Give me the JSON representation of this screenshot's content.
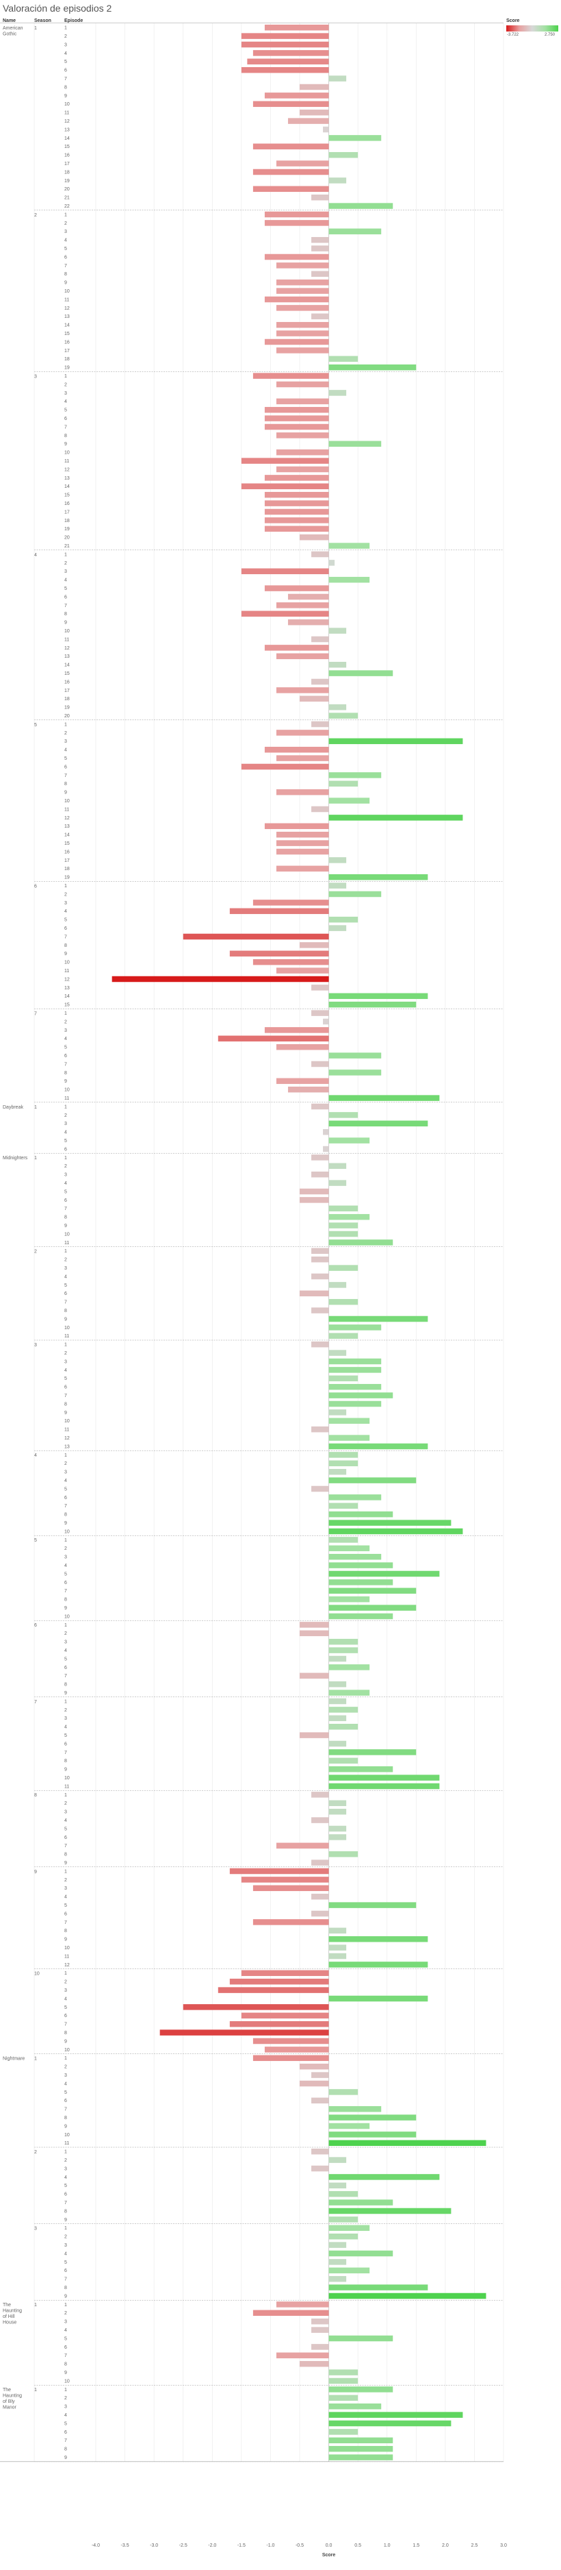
{
  "page": {
    "title": "Valoración de episodios 2"
  },
  "columns": {
    "name": "Name",
    "season": "Season",
    "episode": "Episode"
  },
  "legend": {
    "title": "Score",
    "min_label": "-3.722",
    "max_label": "2.750"
  },
  "colors": {
    "negative_strong": "#d71a1a",
    "negative_light": "#e8a0a0",
    "neutral": "#d8d8d8",
    "positive_light": "#a3e1a3",
    "positive_strong": "#4cd24c",
    "grid": "#ebebeb",
    "zero_line": "#cccccc",
    "separator": "#999999"
  },
  "chart_data": {
    "type": "bar",
    "orientation": "horizontal",
    "title": "Valoración de episodios 2",
    "xlabel": "Score",
    "xlim": [
      -4,
      3
    ],
    "x_ticks": [
      -4.0,
      -3.5,
      -3.0,
      -2.5,
      -2.0,
      -1.5,
      -1.0,
      -0.5,
      0.0,
      0.5,
      1.0,
      1.5,
      2.0,
      2.5,
      3.0
    ],
    "color_range": [
      -3.722,
      2.75
    ],
    "groups": [
      {
        "name": "American Gothic",
        "season": 1,
        "values": [
          -1.1,
          -1.5,
          -1.5,
          -1.3,
          -1.4,
          -1.5,
          0.3,
          -0.5,
          -1.1,
          -1.3,
          -0.5,
          -0.7,
          -0.1,
          0.9,
          -1.3,
          0.5,
          -0.9,
          -1.3,
          0.3,
          -1.3,
          -0.3,
          1.1
        ]
      },
      {
        "name": "",
        "season": 2,
        "values": [
          -1.1,
          -1.1,
          0.9,
          -0.3,
          -0.3,
          -1.1,
          -0.9,
          -0.3,
          -0.9,
          -0.9,
          -1.1,
          -0.9,
          -0.3,
          -0.9,
          -0.9,
          -1.1,
          -0.9,
          0.5,
          1.5
        ]
      },
      {
        "name": "",
        "season": 3,
        "values": [
          -1.3,
          -0.9,
          0.3,
          -0.9,
          -1.1,
          -1.1,
          -1.1,
          -0.9,
          0.9,
          -0.9,
          -1.5,
          -0.9,
          -1.1,
          -1.5,
          -1.1,
          -1.1,
          -1.1,
          -1.1,
          -1.1,
          -0.5,
          0.7
        ]
      },
      {
        "name": "",
        "season": 4,
        "values": [
          -0.3,
          0.1,
          -1.5,
          0.7,
          -1.1,
          -0.7,
          -0.9,
          -1.5,
          -0.7,
          0.3,
          -0.3,
          -1.1,
          -0.9,
          0.3,
          1.1,
          -0.3,
          -0.9,
          -0.5,
          0.3,
          0.5
        ]
      },
      {
        "name": "",
        "season": 5,
        "values": [
          -0.3,
          -0.9,
          2.3,
          -1.1,
          -0.9,
          -1.5,
          0.9,
          0.5,
          -0.9,
          0.7,
          -0.3,
          2.3,
          -1.1,
          -0.9,
          -0.9,
          -0.9,
          0.3,
          -0.9,
          1.7
        ]
      },
      {
        "name": "",
        "season": 6,
        "values": [
          0.3,
          0.9,
          -1.3,
          -1.7,
          0.5,
          0.3,
          -2.5,
          -0.5,
          -1.7,
          -1.3,
          -0.9,
          -3.722,
          -0.3,
          1.7,
          1.5
        ]
      },
      {
        "name": "",
        "season": 7,
        "values": [
          -0.3,
          -0.1,
          -1.1,
          -1.9,
          -0.9,
          0.9,
          -0.3,
          0.9,
          -0.9,
          -0.7,
          1.9
        ]
      },
      {
        "name": "Daybreak",
        "season": 1,
        "values": [
          -0.3,
          0.5,
          1.7,
          -0.1,
          0.7,
          -0.1
        ]
      },
      {
        "name": "Midnighters",
        "season": 1,
        "values": [
          -0.3,
          0.3,
          -0.3,
          0.3,
          -0.5,
          -0.5,
          0.5,
          0.7,
          0.5,
          0.5,
          1.1
        ]
      },
      {
        "name": "",
        "season": 2,
        "values": [
          -0.3,
          -0.3,
          0.5,
          -0.3,
          0.3,
          -0.5,
          0.5,
          -0.3,
          1.7,
          0.9,
          0.5
        ]
      },
      {
        "name": "",
        "season": 3,
        "values": [
          -0.3,
          0.3,
          0.9,
          0.9,
          0.5,
          0.9,
          1.1,
          0.9,
          0.3,
          0.7,
          -0.3,
          0.7,
          1.7
        ]
      },
      {
        "name": "",
        "season": 4,
        "values": [
          0.5,
          0.5,
          0.3,
          1.5,
          -0.3,
          0.9,
          0.5,
          1.1,
          2.1,
          2.3
        ]
      },
      {
        "name": "",
        "season": 5,
        "values": [
          0.5,
          0.7,
          0.9,
          1.1,
          1.9,
          1.1,
          1.5,
          0.7,
          1.5,
          1.1
        ]
      },
      {
        "name": "",
        "season": 6,
        "values": [
          -0.5,
          -0.5,
          0.5,
          0.5,
          0.3,
          0.7,
          -0.5,
          0.3,
          0.7
        ]
      },
      {
        "name": "",
        "season": 7,
        "values": [
          0.3,
          0.5,
          0.3,
          0.5,
          -0.5,
          0.3,
          1.5,
          0.5,
          1.1,
          1.9,
          1.9
        ]
      },
      {
        "name": "",
        "season": 8,
        "values": [
          -0.3,
          0.3,
          0.3,
          -0.3,
          0.3,
          0.3,
          -0.9,
          0.5,
          -0.3
        ]
      },
      {
        "name": "",
        "season": 9,
        "values": [
          -1.7,
          -1.5,
          -1.3,
          -0.3,
          1.5,
          -0.3,
          -1.3,
          0.3,
          1.7,
          0.3,
          0.3,
          1.7
        ]
      },
      {
        "name": "",
        "season": 10,
        "values": [
          -1.5,
          -1.7,
          -1.9,
          1.7,
          -2.5,
          -1.5,
          -1.7,
          -2.9,
          -1.3,
          -1.1
        ]
      },
      {
        "name": "Nightmare",
        "season": 1,
        "values": [
          -1.3,
          -0.5,
          -0.3,
          -0.5,
          0.5,
          -0.3,
          0.9,
          1.5,
          0.7,
          1.5,
          2.7
        ]
      },
      {
        "name": "",
        "season": 2,
        "values": [
          -0.3,
          0.3,
          -0.3,
          1.9,
          0.3,
          0.5,
          1.1,
          2.1,
          0.5
        ]
      },
      {
        "name": "",
        "season": 3,
        "values": [
          0.7,
          0.5,
          0.3,
          1.1,
          0.3,
          0.7,
          0.3,
          1.7,
          2.7
        ]
      },
      {
        "name": "The Haunting of Hill House",
        "season": 1,
        "values": [
          -0.9,
          -1.3,
          -0.3,
          -0.3,
          1.1,
          -0.3,
          -0.9,
          -0.5,
          0.5,
          0.5
        ]
      },
      {
        "name": "The Haunting of Bly Manor",
        "season": 1,
        "values": [
          1.1,
          0.5,
          0.9,
          2.3,
          2.1,
          0.5,
          1.1,
          1.1,
          1.1
        ]
      }
    ]
  }
}
